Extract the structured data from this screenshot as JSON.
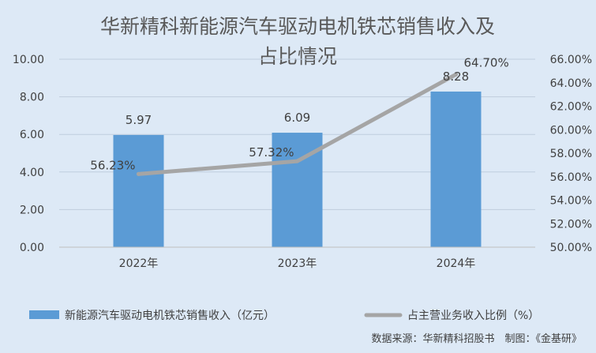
{
  "chart_data": {
    "type": "bar",
    "title_lines": [
      "华新精科新能源汽车驱动电机铁芯销售收入及",
      "占比情况"
    ],
    "categories": [
      "2022年",
      "2023年",
      "2024年"
    ],
    "series": [
      {
        "name": "新能源汽车驱动电机铁芯销售收入（亿元）",
        "type": "bar",
        "axis": "left",
        "color": "#5b9bd5",
        "values": [
          5.97,
          6.09,
          8.28
        ],
        "labels": [
          "5.97",
          "6.09",
          "8.28"
        ]
      },
      {
        "name": "占主营业务收入比例（%）",
        "type": "line",
        "axis": "right",
        "color": "#a5a5a5",
        "values": [
          56.23,
          57.32,
          64.7
        ],
        "labels": [
          "56.23%",
          "57.32%",
          "64.70%"
        ]
      }
    ],
    "y_left": {
      "min": 0,
      "max": 10,
      "ticks": [
        "0.00",
        "2.00",
        "4.00",
        "6.00",
        "8.00",
        "10.00"
      ]
    },
    "y_right": {
      "min": 50,
      "max": 66,
      "ticks": [
        "50.00%",
        "52.00%",
        "54.00%",
        "56.00%",
        "58.00%",
        "60.00%",
        "62.00%",
        "64.00%",
        "66.00%"
      ]
    },
    "grid": true,
    "legend_position": "bottom",
    "source_note": "数据来源：华新精科招股书　制图：《金基研》"
  }
}
